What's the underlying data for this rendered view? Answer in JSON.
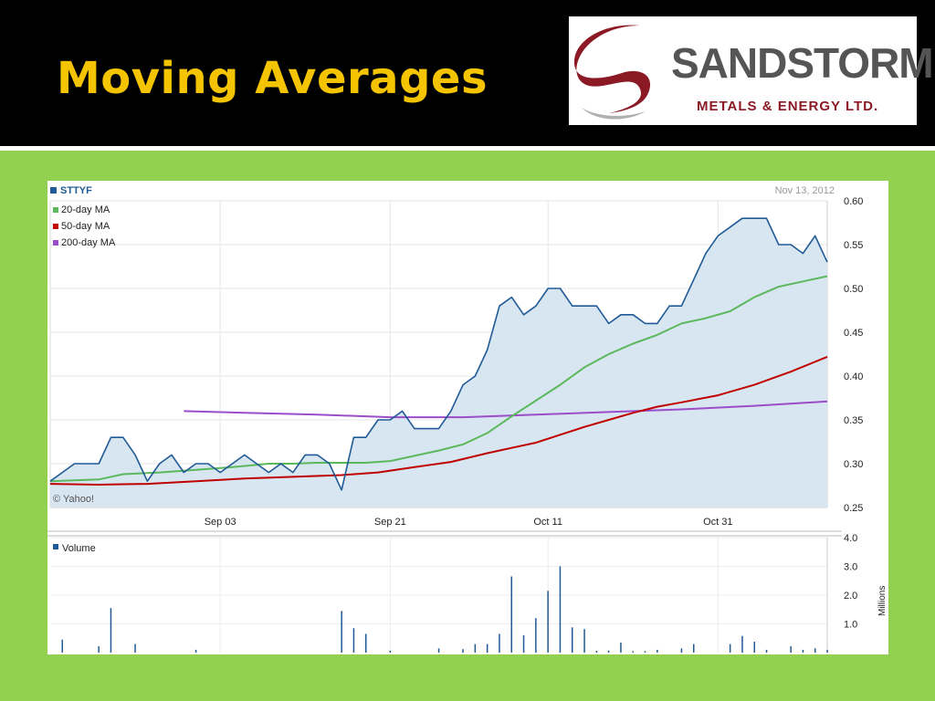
{
  "slide": {
    "title": "Moving Averages"
  },
  "logo": {
    "name": "SANDSTORM",
    "subtitle": "METALS & ENERGY LTD.",
    "colors": {
      "swoosh": "#8b1a24",
      "name": "#555555"
    }
  },
  "colors": {
    "background": "#92d050",
    "header": "#000000",
    "title": "#f5c400",
    "price": "#1f5a96",
    "price_fill": "#d8e6f1",
    "ma20": "#5cb85c",
    "ma50": "#c00000",
    "ma200": "#9b4dca",
    "volume": "#1f5a96"
  },
  "chart_data": [
    {
      "type": "area",
      "symbol": "STTYF",
      "date": "Nov 13, 2012",
      "credit": "© Yahoo!",
      "legend_position": "top-left",
      "grid": true,
      "ylim": [
        0.25,
        0.6
      ],
      "yticks": [
        "0.60",
        "0.55",
        "0.50",
        "0.45",
        "0.40",
        "0.35",
        "0.30",
        "0.25"
      ],
      "xlim": [
        0,
        64
      ],
      "xticks": [
        {
          "label": "Sep 03",
          "x": 14
        },
        {
          "label": "Sep 21",
          "x": 28
        },
        {
          "label": "Oct 11",
          "x": 41
        },
        {
          "label": "Oct 31",
          "x": 55
        }
      ],
      "legend": [
        "20-day MA",
        "50-day MA",
        "200-day MA"
      ],
      "series": [
        {
          "name": "STTYF",
          "x": [
            0,
            1,
            2,
            3,
            4,
            5,
            6,
            7,
            8,
            9,
            10,
            11,
            12,
            13,
            14,
            15,
            16,
            17,
            18,
            19,
            20,
            21,
            22,
            23,
            24,
            25,
            26,
            27,
            28,
            29,
            30,
            31,
            32,
            33,
            34,
            35,
            36,
            37,
            38,
            39,
            40,
            41,
            42,
            43,
            44,
            45,
            46,
            47,
            48,
            49,
            50,
            51,
            52,
            53,
            54,
            55,
            56,
            57,
            58,
            59,
            60,
            61,
            62,
            63,
            64
          ],
          "values": [
            0.28,
            0.29,
            0.3,
            0.3,
            0.3,
            0.33,
            0.33,
            0.31,
            0.28,
            0.3,
            0.31,
            0.29,
            0.3,
            0.3,
            0.29,
            0.3,
            0.31,
            0.3,
            0.29,
            0.3,
            0.29,
            0.31,
            0.31,
            0.3,
            0.27,
            0.33,
            0.33,
            0.35,
            0.35,
            0.36,
            0.34,
            0.34,
            0.34,
            0.36,
            0.39,
            0.4,
            0.43,
            0.48,
            0.49,
            0.47,
            0.48,
            0.5,
            0.5,
            0.48,
            0.48,
            0.48,
            0.46,
            0.47,
            0.47,
            0.46,
            0.46,
            0.48,
            0.48,
            0.51,
            0.54,
            0.56,
            0.57,
            0.58,
            0.58,
            0.58,
            0.55,
            0.55,
            0.54,
            0.56,
            0.53
          ]
        },
        {
          "name": "20-day MA",
          "x": [
            0,
            4,
            6,
            9,
            12,
            15,
            18,
            20,
            22,
            24,
            26,
            28,
            30,
            32,
            34,
            36,
            38,
            40,
            42,
            44,
            46,
            48,
            50,
            52,
            54,
            56,
            58,
            60,
            62,
            64
          ],
          "values": [
            0.28,
            0.282,
            0.288,
            0.29,
            0.293,
            0.296,
            0.3,
            0.3,
            0.301,
            0.301,
            0.301,
            0.303,
            0.309,
            0.315,
            0.322,
            0.335,
            0.354,
            0.372,
            0.39,
            0.41,
            0.425,
            0.437,
            0.447,
            0.46,
            0.466,
            0.474,
            0.49,
            0.502,
            0.508,
            0.514
          ]
        },
        {
          "name": "50-day MA",
          "x": [
            0,
            4,
            8,
            12,
            16,
            20,
            24,
            27,
            30,
            33,
            36,
            38,
            40,
            42,
            44,
            46,
            48,
            50,
            52,
            55,
            58,
            61,
            64
          ],
          "values": [
            0.277,
            0.276,
            0.277,
            0.28,
            0.283,
            0.285,
            0.287,
            0.29,
            0.296,
            0.302,
            0.312,
            0.318,
            0.324,
            0.333,
            0.342,
            0.35,
            0.358,
            0.365,
            0.37,
            0.378,
            0.39,
            0.405,
            0.422
          ]
        },
        {
          "name": "200-day MA",
          "x": [
            11,
            16,
            22,
            28,
            34,
            40,
            46,
            52,
            58,
            64
          ],
          "values": [
            0.36,
            0.358,
            0.356,
            0.353,
            0.353,
            0.356,
            0.359,
            0.362,
            0.366,
            0.371
          ]
        }
      ]
    },
    {
      "type": "bar",
      "series_name": "Volume",
      "unit_label": "Millions",
      "ylim": [
        0,
        4.0
      ],
      "yticks": [
        "4.0",
        "3.0",
        "2.0",
        "1.0"
      ],
      "x": [
        1,
        4,
        5,
        7,
        12,
        24,
        25,
        26,
        28,
        32,
        34,
        35,
        36,
        37,
        38,
        39,
        40,
        41,
        42,
        43,
        44,
        45,
        46,
        47,
        48,
        49,
        50,
        52,
        53,
        56,
        57,
        58,
        59,
        61,
        62,
        63,
        64
      ],
      "values": [
        0.45,
        0.22,
        1.55,
        0.3,
        0.1,
        1.45,
        0.85,
        0.65,
        0.07,
        0.15,
        0.12,
        0.3,
        0.3,
        0.65,
        2.65,
        0.6,
        1.2,
        2.15,
        3.0,
        0.88,
        0.82,
        0.06,
        0.07,
        0.35,
        0.05,
        0.05,
        0.1,
        0.15,
        0.3,
        0.3,
        0.58,
        0.38,
        0.1,
        0.22,
        0.1,
        0.15,
        0.1
      ]
    }
  ]
}
